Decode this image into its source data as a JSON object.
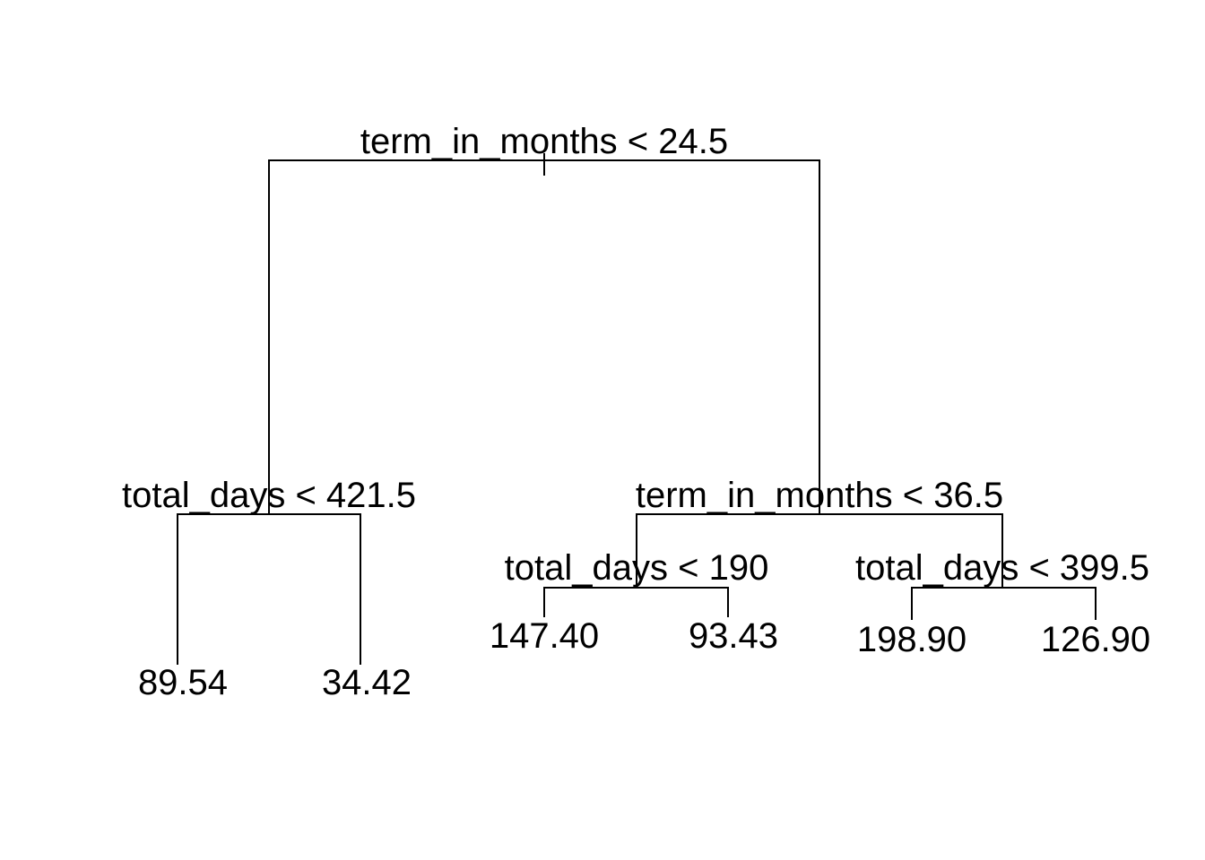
{
  "tree": {
    "root": {
      "split_label": "term_in_months < 24.5",
      "left": {
        "split_label": "total_days < 421.5",
        "left": {
          "leaf_value": "89.54"
        },
        "right": {
          "leaf_value": "34.42"
        }
      },
      "right": {
        "split_label": "term_in_months < 36.5",
        "left": {
          "split_label": "total_days < 190",
          "left": {
            "leaf_value": "147.40"
          },
          "right": {
            "leaf_value": "93.43"
          }
        },
        "right": {
          "split_label": "total_days < 399.5",
          "left": {
            "leaf_value": "198.90"
          },
          "right": {
            "leaf_value": "126.90"
          }
        }
      }
    }
  }
}
